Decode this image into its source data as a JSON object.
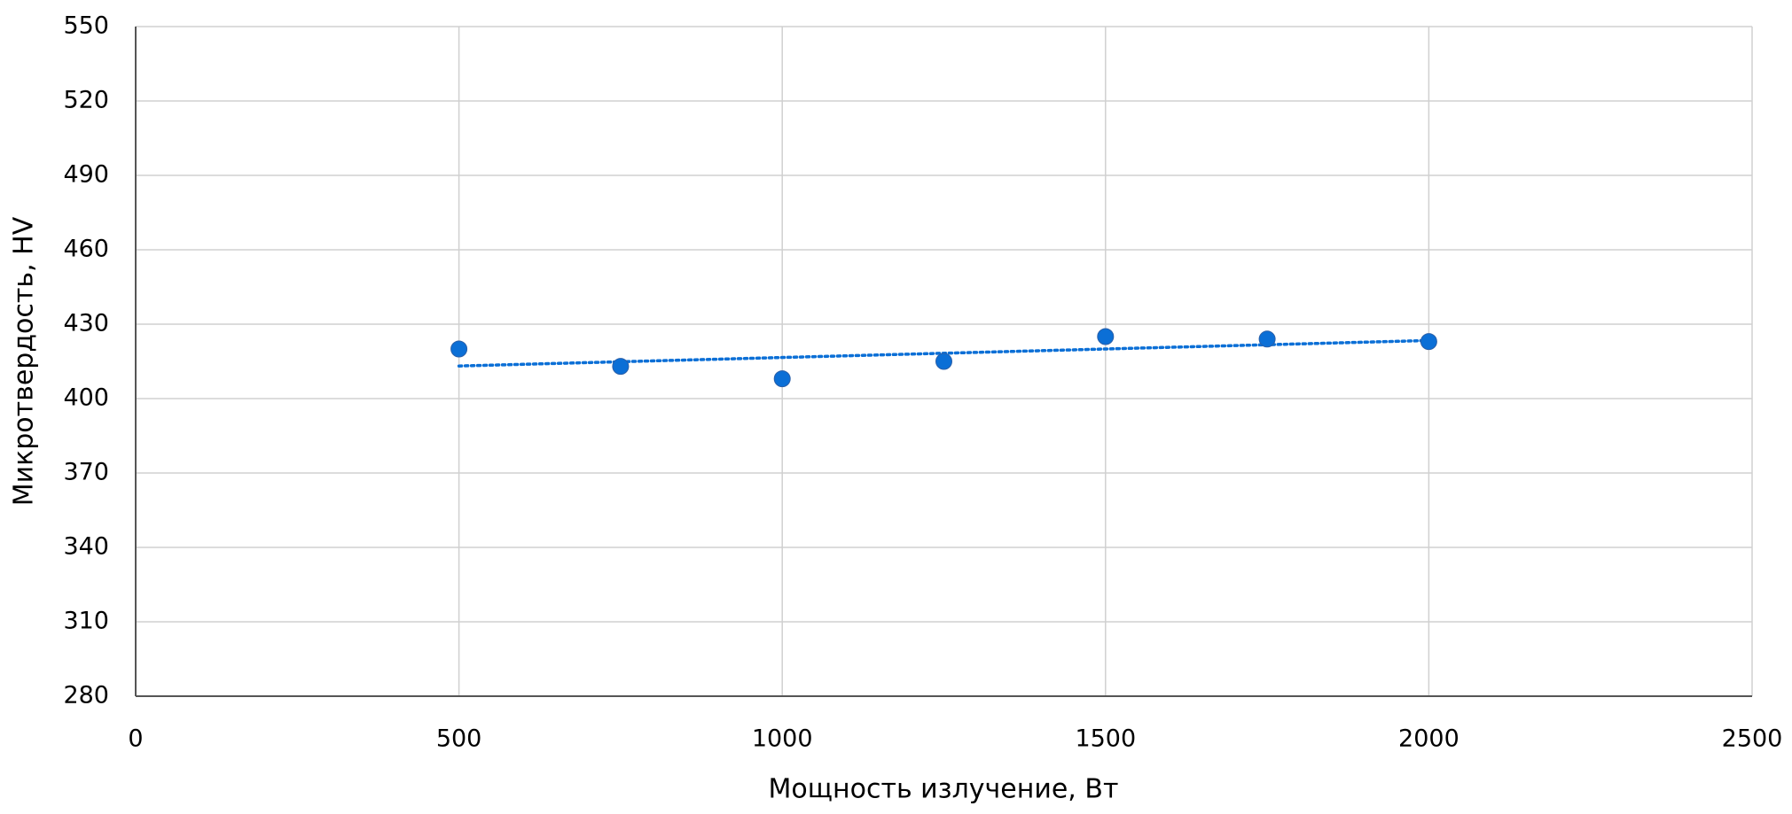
{
  "chart_data": {
    "type": "scatter",
    "x_label": "Мощность излучение, Вт",
    "y_label": "Микротвердость, HV",
    "x": [
      500,
      750,
      1000,
      1250,
      1500,
      1750,
      2000
    ],
    "values": [
      420,
      413,
      408,
      415,
      425,
      424,
      423
    ],
    "color": "#0b6fd6",
    "trendline": "linear",
    "xlim": [
      0,
      2500
    ],
    "xticks": [
      0,
      500,
      1000,
      1500,
      2000,
      2500
    ],
    "ylim": [
      280,
      550
    ],
    "yticks": [
      280,
      310,
      340,
      370,
      400,
      430,
      460,
      490,
      520,
      550
    ],
    "grid": true
  }
}
